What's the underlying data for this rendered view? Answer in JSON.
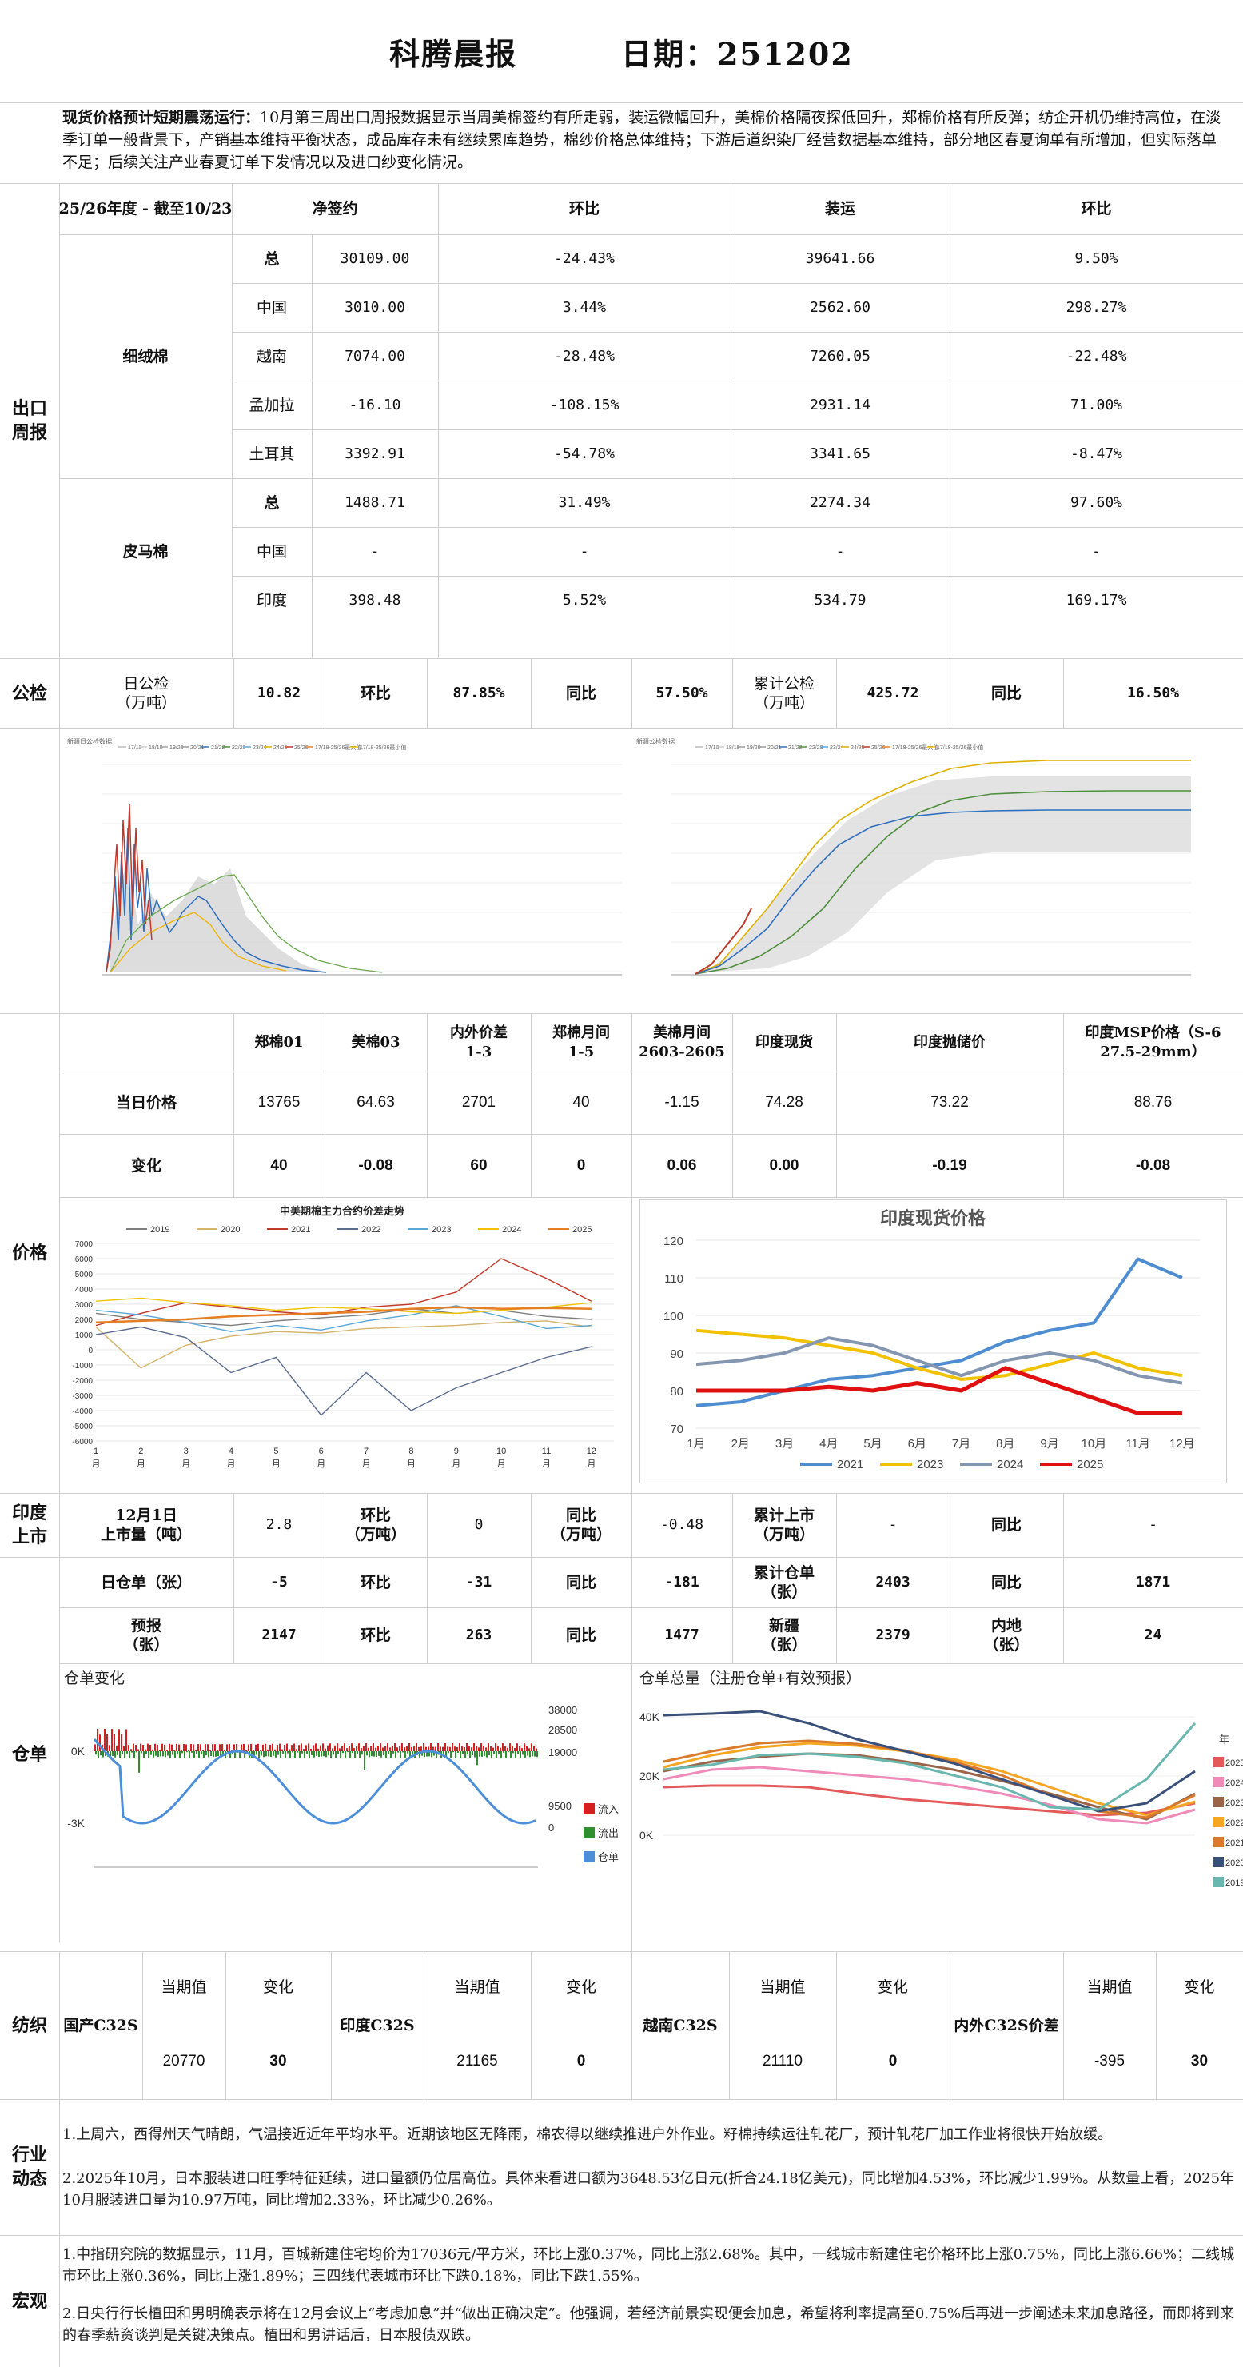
{
  "header": {
    "title": "科腾晨报",
    "date_label": "日期：251202"
  },
  "summary": {
    "headline": "现货价格预计短期震荡运行：",
    "text": "10月第三周出口周报数据显示当周美棉签约有所走弱，装运微幅回升，美棉价格隔夜探低回升，郑棉价格有所反弹；纺企开机仍维持高位，在淡季订单一般背景下，产销基本维持平衡状态，成品库存未有继续累库趋势，棉纱价格总体维持；下游后道织染厂经营数据基本维持，部分地区春夏询单有所增加，但实际落单不足；后续关注产业春夏订单下发情况以及进口纱变化情况。"
  },
  "export": {
    "section_label": "出口周报",
    "period": "25/26年度 - 截至10/23",
    "headers": [
      "净签约",
      "环比",
      "装运",
      "环比"
    ],
    "groups": [
      {
        "name": "细绒棉",
        "rows": [
          {
            "country": "总",
            "net": "30109.00",
            "net_chg": "-24.43%",
            "ship": "39641.66",
            "ship_chg": "9.50%"
          },
          {
            "country": "中国",
            "net": "3010.00",
            "net_chg": "3.44%",
            "ship": "2562.60",
            "ship_chg": "298.27%"
          },
          {
            "country": "越南",
            "net": "7074.00",
            "net_chg": "-28.48%",
            "ship": "7260.05",
            "ship_chg": "-22.48%"
          },
          {
            "country": "孟加拉",
            "net": "-16.10",
            "net_chg": "-108.15%",
            "ship": "2931.14",
            "ship_chg": "71.00%"
          },
          {
            "country": "土耳其",
            "net": "3392.91",
            "net_chg": "-54.78%",
            "ship": "3341.65",
            "ship_chg": "-8.47%"
          }
        ]
      },
      {
        "name": "皮马棉",
        "rows": [
          {
            "country": "总",
            "net": "1488.71",
            "net_chg": "31.49%",
            "ship": "2274.34",
            "ship_chg": "97.60%"
          },
          {
            "country": "中国",
            "net": "-",
            "net_chg": "-",
            "ship": "-",
            "ship_chg": "-"
          },
          {
            "country": "印度",
            "net": "398.48",
            "net_chg": "5.52%",
            "ship": "534.79",
            "ship_chg": "169.17%"
          }
        ]
      }
    ]
  },
  "inspection": {
    "section_label": "公检",
    "daily_label": "日公检\n（万吨）",
    "daily_value": "10.82",
    "hb_label": "环比",
    "hb_value": "87.85%",
    "tb_label": "同比",
    "tb_value": "57.50%",
    "cum_label": "累计公检\n（万吨）",
    "cum_value": "425.72",
    "tb2_label": "同比",
    "tb2_value": "16.50%"
  },
  "inspection_charts": {
    "left_title": "新疆日公检数据",
    "right_title": "新疆公检数据",
    "legend": [
      "17/18",
      "18/19",
      "19/20",
      "20/21",
      "21/22",
      "22/23",
      "23/24",
      "24/25",
      "25/26",
      "17/18-25/26最大值",
      "17/18-25/26最小值"
    ]
  },
  "price": {
    "section_label": "价格",
    "headers": [
      "郑棉01",
      "美棉03",
      "内外价差\n1-3",
      "郑棉月间\n1-5",
      "美棉月间\n2603-2605",
      "印度现货",
      "印度抛储价",
      "印度MSP价格（S-6\n27.5-29mm）"
    ],
    "today_label": "当日价格",
    "today": [
      "13765",
      "64.63",
      "2701",
      "40",
      "-1.15",
      "74.28",
      "73.22",
      "88.76"
    ],
    "change_label": "变化",
    "change": [
      "40",
      "-0.08",
      "60",
      "0",
      "0.06",
      "0.00",
      "-0.19",
      "-0.08"
    ]
  },
  "india_market": {
    "section_label": "印度上市",
    "date_label": "12月1日\n上市量（吨）",
    "value": "2.8",
    "hb_label": "环比\n（万吨）",
    "hb_value": "0",
    "tb_label": "同比\n（万吨）",
    "tb_value": "-0.48",
    "cum_label": "累计上市\n（万吨）",
    "cum_value": "-",
    "tb2_label": "同比",
    "tb2_value": "-"
  },
  "warehouse": {
    "section_label": "仓单",
    "row1": [
      [
        "日仓单（张）",
        "-5"
      ],
      [
        "环比",
        "-31"
      ],
      [
        "同比",
        "-181"
      ],
      [
        "累计仓单\n（张）",
        "2403"
      ],
      [
        "同比",
        "1871"
      ]
    ],
    "row2": [
      [
        "预报\n（张）",
        "2147"
      ],
      [
        "环比",
        "263"
      ],
      [
        "同比",
        "1477"
      ],
      [
        "新疆\n（张）",
        "2379"
      ],
      [
        "内地\n（张）",
        "24"
      ]
    ],
    "left_chart_title": "仓单变化",
    "right_chart_title": "仓单总量（注册仓单+有效预报）",
    "left_legend": [
      "流入",
      "流出",
      "仓单"
    ],
    "right_legend_title": "年",
    "right_legend": [
      "2025",
      "2024",
      "2023",
      "2022",
      "2021",
      "2020",
      "2019"
    ]
  },
  "yarn": {
    "section_label": "纺织",
    "blocks": [
      {
        "name": "国产C32S",
        "cur_label": "当期值",
        "chg_label": "变化",
        "cur": "20770",
        "chg": "30"
      },
      {
        "name": "印度C32S",
        "cur_label": "当期值",
        "chg_label": "变化",
        "cur": "21165",
        "chg": "0"
      },
      {
        "name": "越南C32S",
        "cur_label": "当期值",
        "chg_label": "变化",
        "cur": "21110",
        "chg": "0"
      },
      {
        "name": "内外C32S价差",
        "cur_label": "当期值",
        "chg_label": "变化",
        "cur": "-395",
        "chg": "30"
      }
    ]
  },
  "industry": {
    "section_label": "行业动态",
    "p1": "1.上周六，西得州天气晴朗，气温接近近年平均水平。近期该地区无降雨，棉农得以继续推进户外作业。籽棉持续运往轧花厂，预计轧花厂加工作业将很快开始放缓。",
    "p2": "2.2025年10月，日本服装进口旺季特征延续，进口量额仍位居高位。具体来看进口额为3648.53亿日元(折合24.18亿美元)，同比增加4.53%，环比减少1.99%。从数量上看，2025年10月服装进口量为10.97万吨，同比增加2.33%，环比减少0.26%。"
  },
  "macro": {
    "section_label": "宏观",
    "p1": "1.中指研究院的数据显示，11月，百城新建住宅均价为17036元/平方米，环比上涨0.37%，同比上涨2.68%。其中，一线城市新建住宅价格环比上涨0.75%，同比上涨6.66%；二线城市环比上涨0.36%，同比上涨1.89%；三四线代表城市环比下跌0.18%，同比下跌1.55%。",
    "p2": "2.日央行行长植田和男明确表示将在12月会议上“考虑加息”并“做出正确决定”。他强调，若经济前景实现便会加息，希望将利率提高至0.75%后再进一步阐述未来加息路径，而即将到来的春季薪资谈判是关键决策点。植田和男讲话后，日本股债双跌。"
  },
  "chart_data": [
    {
      "type": "line",
      "title": "中美期棉主力合约价差走势",
      "xlabel": "",
      "ylabel": "",
      "ylim": [
        -6000,
        7000
      ],
      "yticks": [
        "7000",
        "6000",
        "5000",
        "4000",
        "3000",
        "2000",
        "1000",
        "0",
        "-1000",
        "-2000",
        "-3000",
        "-4000",
        "-5000",
        "-6000"
      ],
      "categories": [
        "1月",
        "2月",
        "3月",
        "4月",
        "5月",
        "6月",
        "7月",
        "8月",
        "9月",
        "10月",
        "11月",
        "12月"
      ],
      "series": [
        {
          "name": "2019",
          "color": "#7f7f7f",
          "values": [
            2400,
            2000,
            1800,
            1600,
            1900,
            2100,
            2300,
            2700,
            2400,
            2600,
            2200,
            2000
          ]
        },
        {
          "name": "2020",
          "color": "#d4b36a",
          "values": [
            1500,
            -1200,
            300,
            900,
            1200,
            1100,
            1400,
            1500,
            1600,
            1800,
            1900,
            1500
          ]
        },
        {
          "name": "2021",
          "color": "#c0392b",
          "values": [
            1600,
            2400,
            3100,
            2800,
            2500,
            2300,
            2800,
            3000,
            3800,
            6000,
            4700,
            3200
          ]
        },
        {
          "name": "2022",
          "color": "#5b6c8f",
          "values": [
            1000,
            1500,
            800,
            -1500,
            -500,
            -4300,
            -1500,
            -4000,
            -2500,
            -1500,
            -500,
            200
          ]
        },
        {
          "name": "2023",
          "color": "#5aa6d6",
          "values": [
            2600,
            2300,
            1800,
            1200,
            1600,
            1300,
            1900,
            2300,
            2900,
            2200,
            1400,
            1600
          ]
        },
        {
          "name": "2024",
          "color": "#f2c200",
          "values": [
            3200,
            3400,
            3100,
            2900,
            2600,
            2800,
            2700,
            2500,
            2400,
            2600,
            2800,
            3100
          ]
        },
        {
          "name": "2025",
          "color": "#e67e22",
          "values": [
            1800,
            1900,
            2000,
            2200,
            2300,
            2400,
            2500,
            2700,
            2800,
            2700,
            2750,
            2701
          ]
        }
      ]
    },
    {
      "type": "line",
      "title": "印度现货价格",
      "xlabel": "",
      "ylabel": "",
      "ylim": [
        70,
        120
      ],
      "yticks": [
        "120",
        "110",
        "100",
        "90",
        "80",
        "70"
      ],
      "categories": [
        "1月",
        "2月",
        "3月",
        "4月",
        "5月",
        "6月",
        "7月",
        "8月",
        "9月",
        "10月",
        "11月",
        "12月"
      ],
      "series": [
        {
          "name": "2021",
          "color": "#4e8ed0",
          "values": [
            76,
            77,
            80,
            83,
            84,
            86,
            88,
            93,
            96,
            98,
            115,
            110
          ]
        },
        {
          "name": "2023",
          "color": "#f2c200",
          "values": [
            96,
            95,
            94,
            92,
            90,
            86,
            83,
            84,
            87,
            90,
            86,
            84
          ]
        },
        {
          "name": "2024",
          "color": "#8496b0",
          "values": [
            87,
            88,
            90,
            94,
            92,
            88,
            84,
            88,
            90,
            88,
            84,
            82
          ]
        },
        {
          "name": "2025",
          "color": "#e01010",
          "values": [
            80,
            80,
            80,
            81,
            80,
            82,
            80,
            86,
            82,
            78,
            74,
            74
          ]
        }
      ]
    }
  ]
}
